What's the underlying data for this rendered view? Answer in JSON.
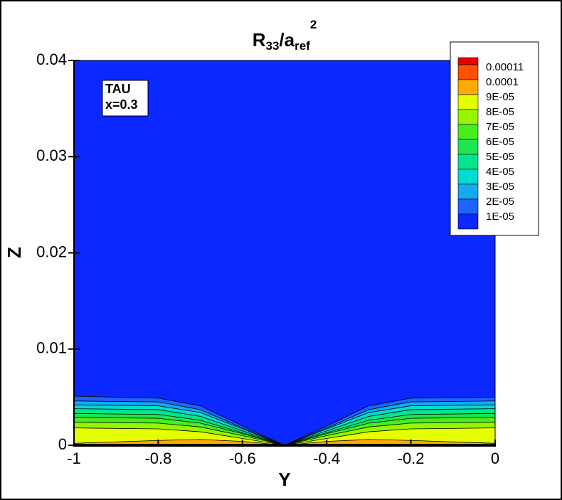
{
  "chart_data": {
    "type": "contour",
    "title": {
      "base": "R",
      "sub1": "33",
      "mid": "/a",
      "sub2": "ref",
      "sup": "2"
    },
    "xlabel": "Y",
    "ylabel": "Z",
    "annotation": [
      "TAU",
      "x=0.3"
    ],
    "xlim": [
      -1,
      0
    ],
    "ylim": [
      0,
      0.04
    ],
    "xticks": [
      -1,
      -0.8,
      -0.6,
      -0.4,
      -0.2,
      0
    ],
    "yticks": [
      0,
      0.01,
      0.02,
      0.03,
      0.04
    ],
    "field_color": "#0a28ff",
    "levels": [
      {
        "value": 1e-05,
        "label": "1E-05"
      },
      {
        "value": 2e-05,
        "label": "2E-05"
      },
      {
        "value": 3e-05,
        "label": "3E-05"
      },
      {
        "value": 4e-05,
        "label": "4E-05"
      },
      {
        "value": 5e-05,
        "label": "5E-05"
      },
      {
        "value": 6e-05,
        "label": "6E-05"
      },
      {
        "value": 7e-05,
        "label": "7E-05"
      },
      {
        "value": 8e-05,
        "label": "8E-05"
      },
      {
        "value": 9e-05,
        "label": "9E-05"
      },
      0.0001,
      0.00011
    ],
    "colors": [
      "#0a28ff",
      "#1a64ff",
      "#14aaf0",
      "#00dcd2",
      "#00e68c",
      "#1ee650",
      "#46ee1e",
      "#96f500",
      "#e6ff00",
      "#ffaa00",
      "#ff5000",
      "#e60000"
    ],
    "x": [
      -1,
      -0.8,
      -0.7,
      -0.6,
      -0.5,
      -0.4,
      -0.3,
      -0.2,
      0
    ],
    "contours": [
      {
        "z": [
          0.0051,
          0.0049,
          0.0041,
          0.002,
          0,
          0.002,
          0.0041,
          0.0049,
          0.005
        ]
      },
      {
        "z": [
          0.0046,
          0.0045,
          0.0037,
          0.0018,
          0,
          0.0018,
          0.0037,
          0.0045,
          0.0046
        ]
      },
      {
        "z": [
          0.0042,
          0.0041,
          0.0034,
          0.0017,
          0,
          0.0017,
          0.0034,
          0.0041,
          0.0042
        ]
      },
      {
        "z": [
          0.0038,
          0.0037,
          0.003,
          0.0015,
          0,
          0.0015,
          0.003,
          0.0037,
          0.0038
        ]
      },
      {
        "z": [
          0.0033,
          0.0032,
          0.0026,
          0.0013,
          0,
          0.0013,
          0.0026,
          0.0032,
          0.0033
        ]
      },
      {
        "z": [
          0.0029,
          0.0028,
          0.0023,
          0.0012,
          0,
          0.0012,
          0.0023,
          0.0028,
          0.0029
        ]
      },
      {
        "z": [
          0.0024,
          0.0023,
          0.0019,
          0.001,
          0,
          0.001,
          0.0019,
          0.0023,
          0.0024
        ]
      },
      {
        "z": [
          0.0018,
          0.0017,
          0.0014,
          0.0007,
          0,
          0.0007,
          0.0014,
          0.0017,
          0.0018
        ]
      },
      {
        "z": [
          0.0002,
          0.0005,
          0.0006,
          0.0004,
          0,
          0.0004,
          0.0006,
          0.0005,
          0.0002
        ]
      }
    ]
  }
}
